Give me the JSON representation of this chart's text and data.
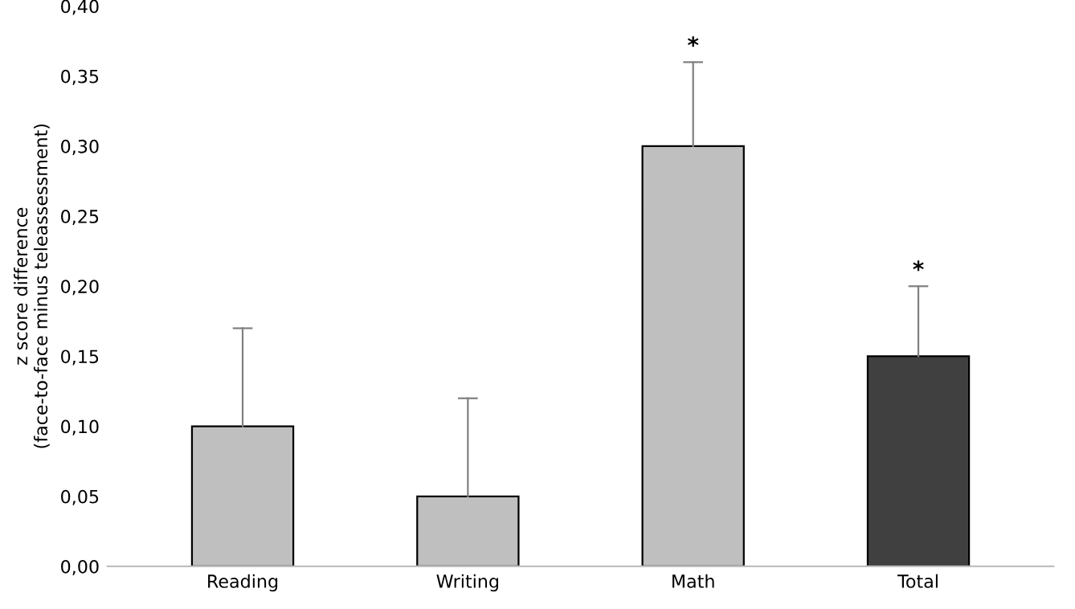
{
  "chart_data": {
    "type": "bar",
    "ylabel": "z score difference\n(face-to-face minus teleassessment)",
    "categories": [
      "Reading",
      "Writing",
      "Math",
      "Total"
    ],
    "values": [
      0.1,
      0.05,
      0.3,
      0.15
    ],
    "colors": [
      "#bfbfbf",
      "#bfbfbf",
      "#bfbfbf",
      "#404040"
    ],
    "errors": [
      [
        0.1,
        0.17
      ],
      [
        0.05,
        0.12
      ],
      [
        0.3,
        0.36
      ],
      [
        0.15,
        0.2
      ]
    ],
    "annotations": [
      {
        "text": "*",
        "x": "Math",
        "y": 0.36
      },
      {
        "text": "*",
        "x": "Total",
        "y": 0.2
      }
    ],
    "ylim": [
      0,
      0.4
    ],
    "yticks": [
      {
        "value": 0,
        "label": "0,00"
      },
      {
        "value": 0.05,
        "label": "0,05"
      },
      {
        "value": 0.1,
        "label": "0,10"
      },
      {
        "value": 0.15,
        "label": "0,15"
      },
      {
        "value": 0.2,
        "label": "0,20"
      },
      {
        "value": 0.25,
        "label": "0,25"
      },
      {
        "value": 0.3,
        "label": "0,30"
      },
      {
        "value": 0.35,
        "label": "0,35"
      },
      {
        "value": 0.4,
        "label": "0,40"
      }
    ],
    "grid": false
  }
}
